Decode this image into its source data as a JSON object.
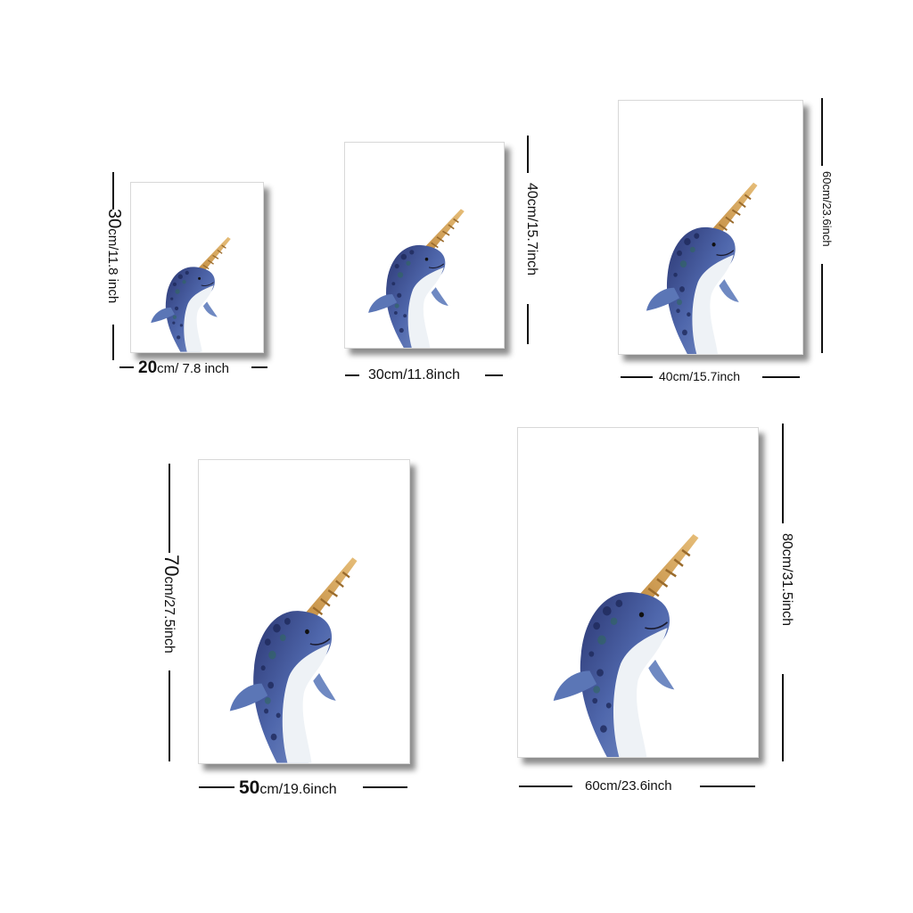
{
  "products": [
    {
      "size_num": "20",
      "size_rest": "cm/ 7.8 inch",
      "height_num": "30",
      "height_rest": "cm/11.8 inch"
    },
    {
      "size_full": "30cm/11.8inch",
      "height_full": "40cm/15.7inch"
    },
    {
      "size_full": "40cm/15.7inch",
      "height_full": "60cm/23.6inch"
    },
    {
      "size_num": "50",
      "size_rest": "cm/19.6inch",
      "height_num": "70",
      "height_rest": "cm/27.5inch"
    },
    {
      "size_full": "60cm/23.6inch",
      "height_full": "80cm/31.5inch"
    }
  ],
  "artwork": "watercolor-narwhal-print",
  "colors": {
    "narwhal_dark": "#2d3f7a",
    "narwhal_mid": "#5d78b8",
    "belly": "#eef2f6",
    "horn": "#d6a75a",
    "horn_dark": "#a87a35"
  }
}
